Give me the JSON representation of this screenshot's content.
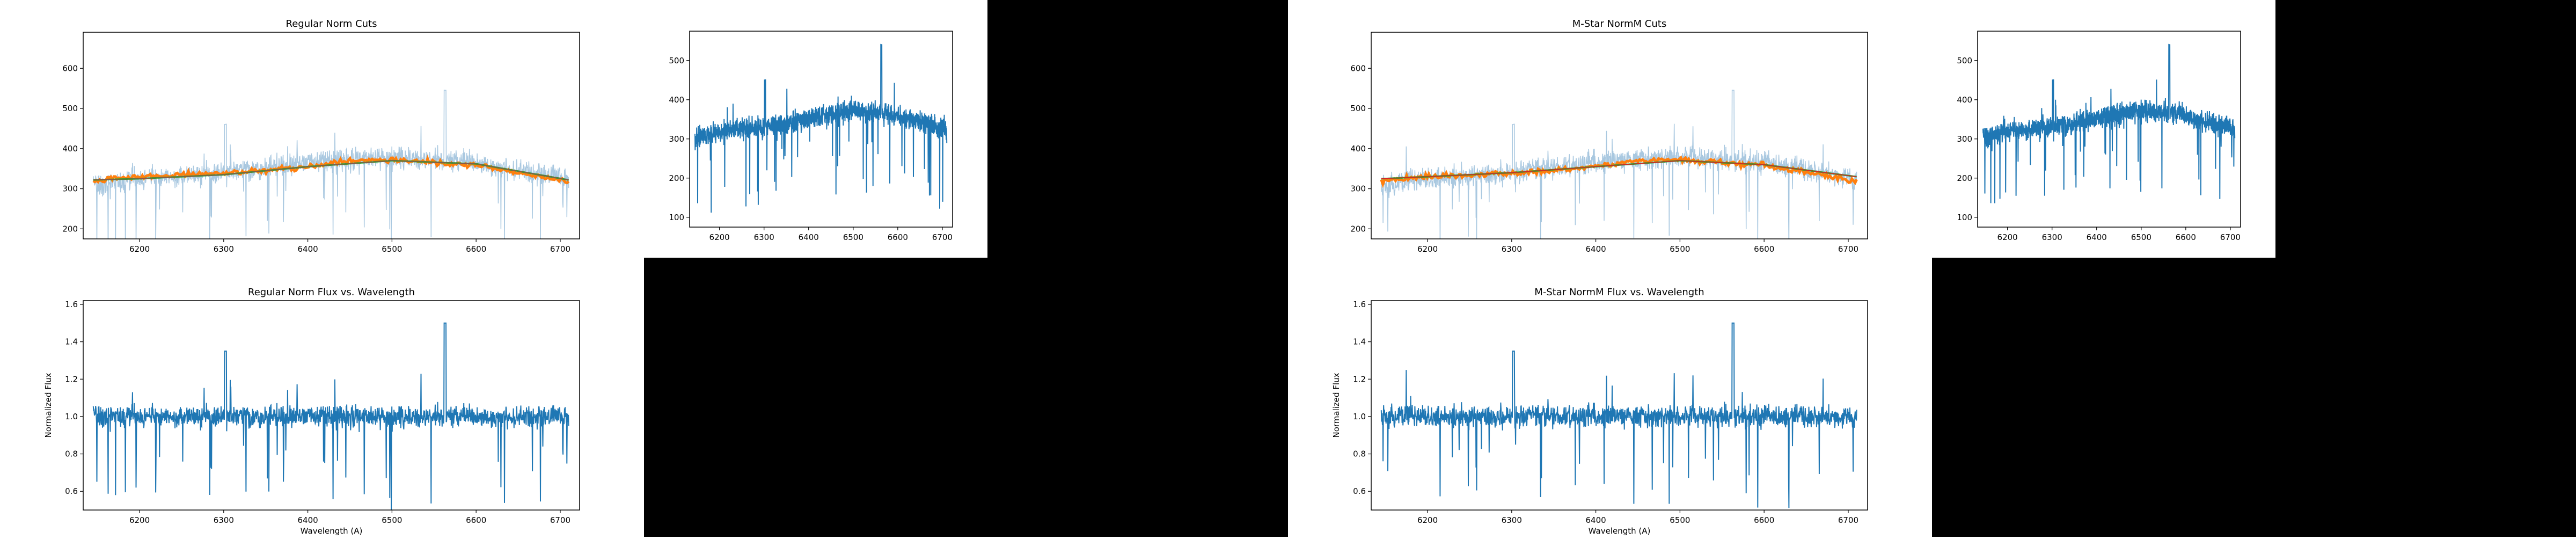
{
  "colors": {
    "background": "#ffffff",
    "black_block": "#000000",
    "spectrum": "#1f77b4",
    "spectrum_faint": "#a9c8e0",
    "fit_orange": "#ff7f0e",
    "fit_green": "#2ca02c",
    "fit_red": "#d62728",
    "fit_brown": "#8c564b",
    "axis": "#000000"
  },
  "chart_data": [
    {
      "id": "left_cuts",
      "type": "line",
      "title": "Regular Norm Cuts",
      "xlabel": "",
      "ylabel": "",
      "xlim": [
        6133,
        6723
      ],
      "ylim": [
        175,
        690
      ],
      "xticks": [
        6200,
        6300,
        6400,
        6500,
        6600,
        6700
      ],
      "yticks": [
        200,
        300,
        400,
        500,
        600
      ],
      "grid": false,
      "series": [
        {
          "style": "faint-noisy",
          "x": [
            6145,
            6200,
            6300,
            6400,
            6500,
            6600,
            6710
          ],
          "values": [
            305,
            325,
            340,
            365,
            380,
            365,
            325
          ]
        },
        {
          "style": "orange-cuts",
          "x": [
            6145,
            6200,
            6300,
            6400,
            6450,
            6500,
            6600,
            6710
          ],
          "values": [
            320,
            330,
            338,
            355,
            370,
            372,
            358,
            318
          ]
        },
        {
          "style": "green-fit",
          "x": [
            6145,
            6200,
            6300,
            6400,
            6500,
            6600,
            6710
          ],
          "values": [
            322,
            325,
            335,
            355,
            370,
            362,
            322
          ]
        },
        {
          "style": "brown-fit",
          "x": [
            6145,
            6200,
            6300,
            6400,
            6500,
            6600,
            6710
          ],
          "values": [
            322,
            325,
            335,
            355,
            370,
            362,
            322
          ]
        }
      ]
    },
    {
      "id": "left_raw",
      "type": "line",
      "title": "",
      "xlabel": "",
      "ylabel": "",
      "xlim": [
        6133,
        6723
      ],
      "ylim": [
        75,
        575
      ],
      "xticks": [
        6200,
        6300,
        6400,
        6500,
        6600,
        6700
      ],
      "yticks": [
        100,
        200,
        300,
        400,
        500
      ],
      "grid": false,
      "series": [
        {
          "style": "spectrum",
          "x": [
            6145,
            6200,
            6300,
            6400,
            6500,
            6600,
            6710
          ],
          "values": [
            300,
            320,
            330,
            350,
            375,
            360,
            325
          ]
        }
      ]
    },
    {
      "id": "left_norm",
      "type": "line",
      "title": "Regular Norm Flux vs. Wavelength",
      "xlabel": "Wavelength (A)",
      "ylabel": "Normalized Flux",
      "xlim": [
        6133,
        6723
      ],
      "ylim": [
        0.5,
        1.62
      ],
      "xticks": [
        6200,
        6300,
        6400,
        6500,
        6600,
        6700
      ],
      "yticks": [
        0.6,
        0.8,
        1.0,
        1.2,
        1.4,
        1.6
      ],
      "ytick_labels": [
        "0.6",
        "0.8",
        "1.0",
        "1.2",
        "1.4",
        "1.6"
      ],
      "grid": false,
      "series": [
        {
          "style": "spectrum",
          "x": [
            6145,
            6710
          ],
          "values": [
            1.0,
            1.0
          ]
        }
      ]
    },
    {
      "id": "right_cuts",
      "type": "line",
      "title": "M-Star NormM Cuts",
      "xlabel": "",
      "ylabel": "",
      "xlim": [
        6133,
        6723
      ],
      "ylim": [
        175,
        690
      ],
      "xticks": [
        6200,
        6300,
        6400,
        6500,
        6600,
        6700
      ],
      "yticks": [
        200,
        300,
        400,
        500,
        600
      ],
      "grid": false,
      "series": [
        {
          "style": "faint-noisy",
          "x": [
            6145,
            6200,
            6300,
            6400,
            6500,
            6600,
            6710
          ],
          "values": [
            305,
            325,
            340,
            365,
            380,
            365,
            325
          ]
        },
        {
          "style": "orange-cuts",
          "x": [
            6145,
            6200,
            6300,
            6400,
            6450,
            6500,
            6600,
            6710
          ],
          "values": [
            320,
            330,
            338,
            355,
            370,
            372,
            358,
            318
          ]
        },
        {
          "style": "green-fit",
          "x": [
            6145,
            6200,
            6300,
            6400,
            6500,
            6600,
            6710
          ],
          "values": [
            325,
            330,
            340,
            355,
            370,
            360,
            330
          ]
        },
        {
          "style": "red-fit",
          "x": [
            6145,
            6200,
            6300,
            6400,
            6500,
            6600,
            6710
          ],
          "values": [
            325,
            330,
            340,
            355,
            370,
            360,
            330
          ]
        }
      ]
    },
    {
      "id": "right_raw",
      "type": "line",
      "title": "",
      "xlabel": "",
      "ylabel": "",
      "xlim": [
        6133,
        6723
      ],
      "ylim": [
        75,
        575
      ],
      "xticks": [
        6200,
        6300,
        6400,
        6500,
        6600,
        6700
      ],
      "yticks": [
        100,
        200,
        300,
        400,
        500
      ],
      "grid": false,
      "series": [
        {
          "style": "spectrum",
          "x": [
            6145,
            6200,
            6300,
            6400,
            6500,
            6600,
            6710
          ],
          "values": [
            300,
            320,
            330,
            350,
            375,
            360,
            325
          ]
        }
      ]
    },
    {
      "id": "right_norm",
      "type": "line",
      "title": "M-Star NormM Flux vs. Wavelength",
      "xlabel": "Wavelength (A)",
      "ylabel": "Normalized Flux",
      "xlim": [
        6133,
        6723
      ],
      "ylim": [
        0.5,
        1.62
      ],
      "xticks": [
        6200,
        6300,
        6400,
        6500,
        6600,
        6700
      ],
      "yticks": [
        0.6,
        0.8,
        1.0,
        1.2,
        1.4,
        1.6
      ],
      "ytick_labels": [
        "0.6",
        "0.8",
        "1.0",
        "1.2",
        "1.4",
        "1.6"
      ],
      "grid": false,
      "series": [
        {
          "style": "spectrum",
          "x": [
            6145,
            6710
          ],
          "values": [
            1.0,
            1.0
          ]
        }
      ]
    }
  ]
}
